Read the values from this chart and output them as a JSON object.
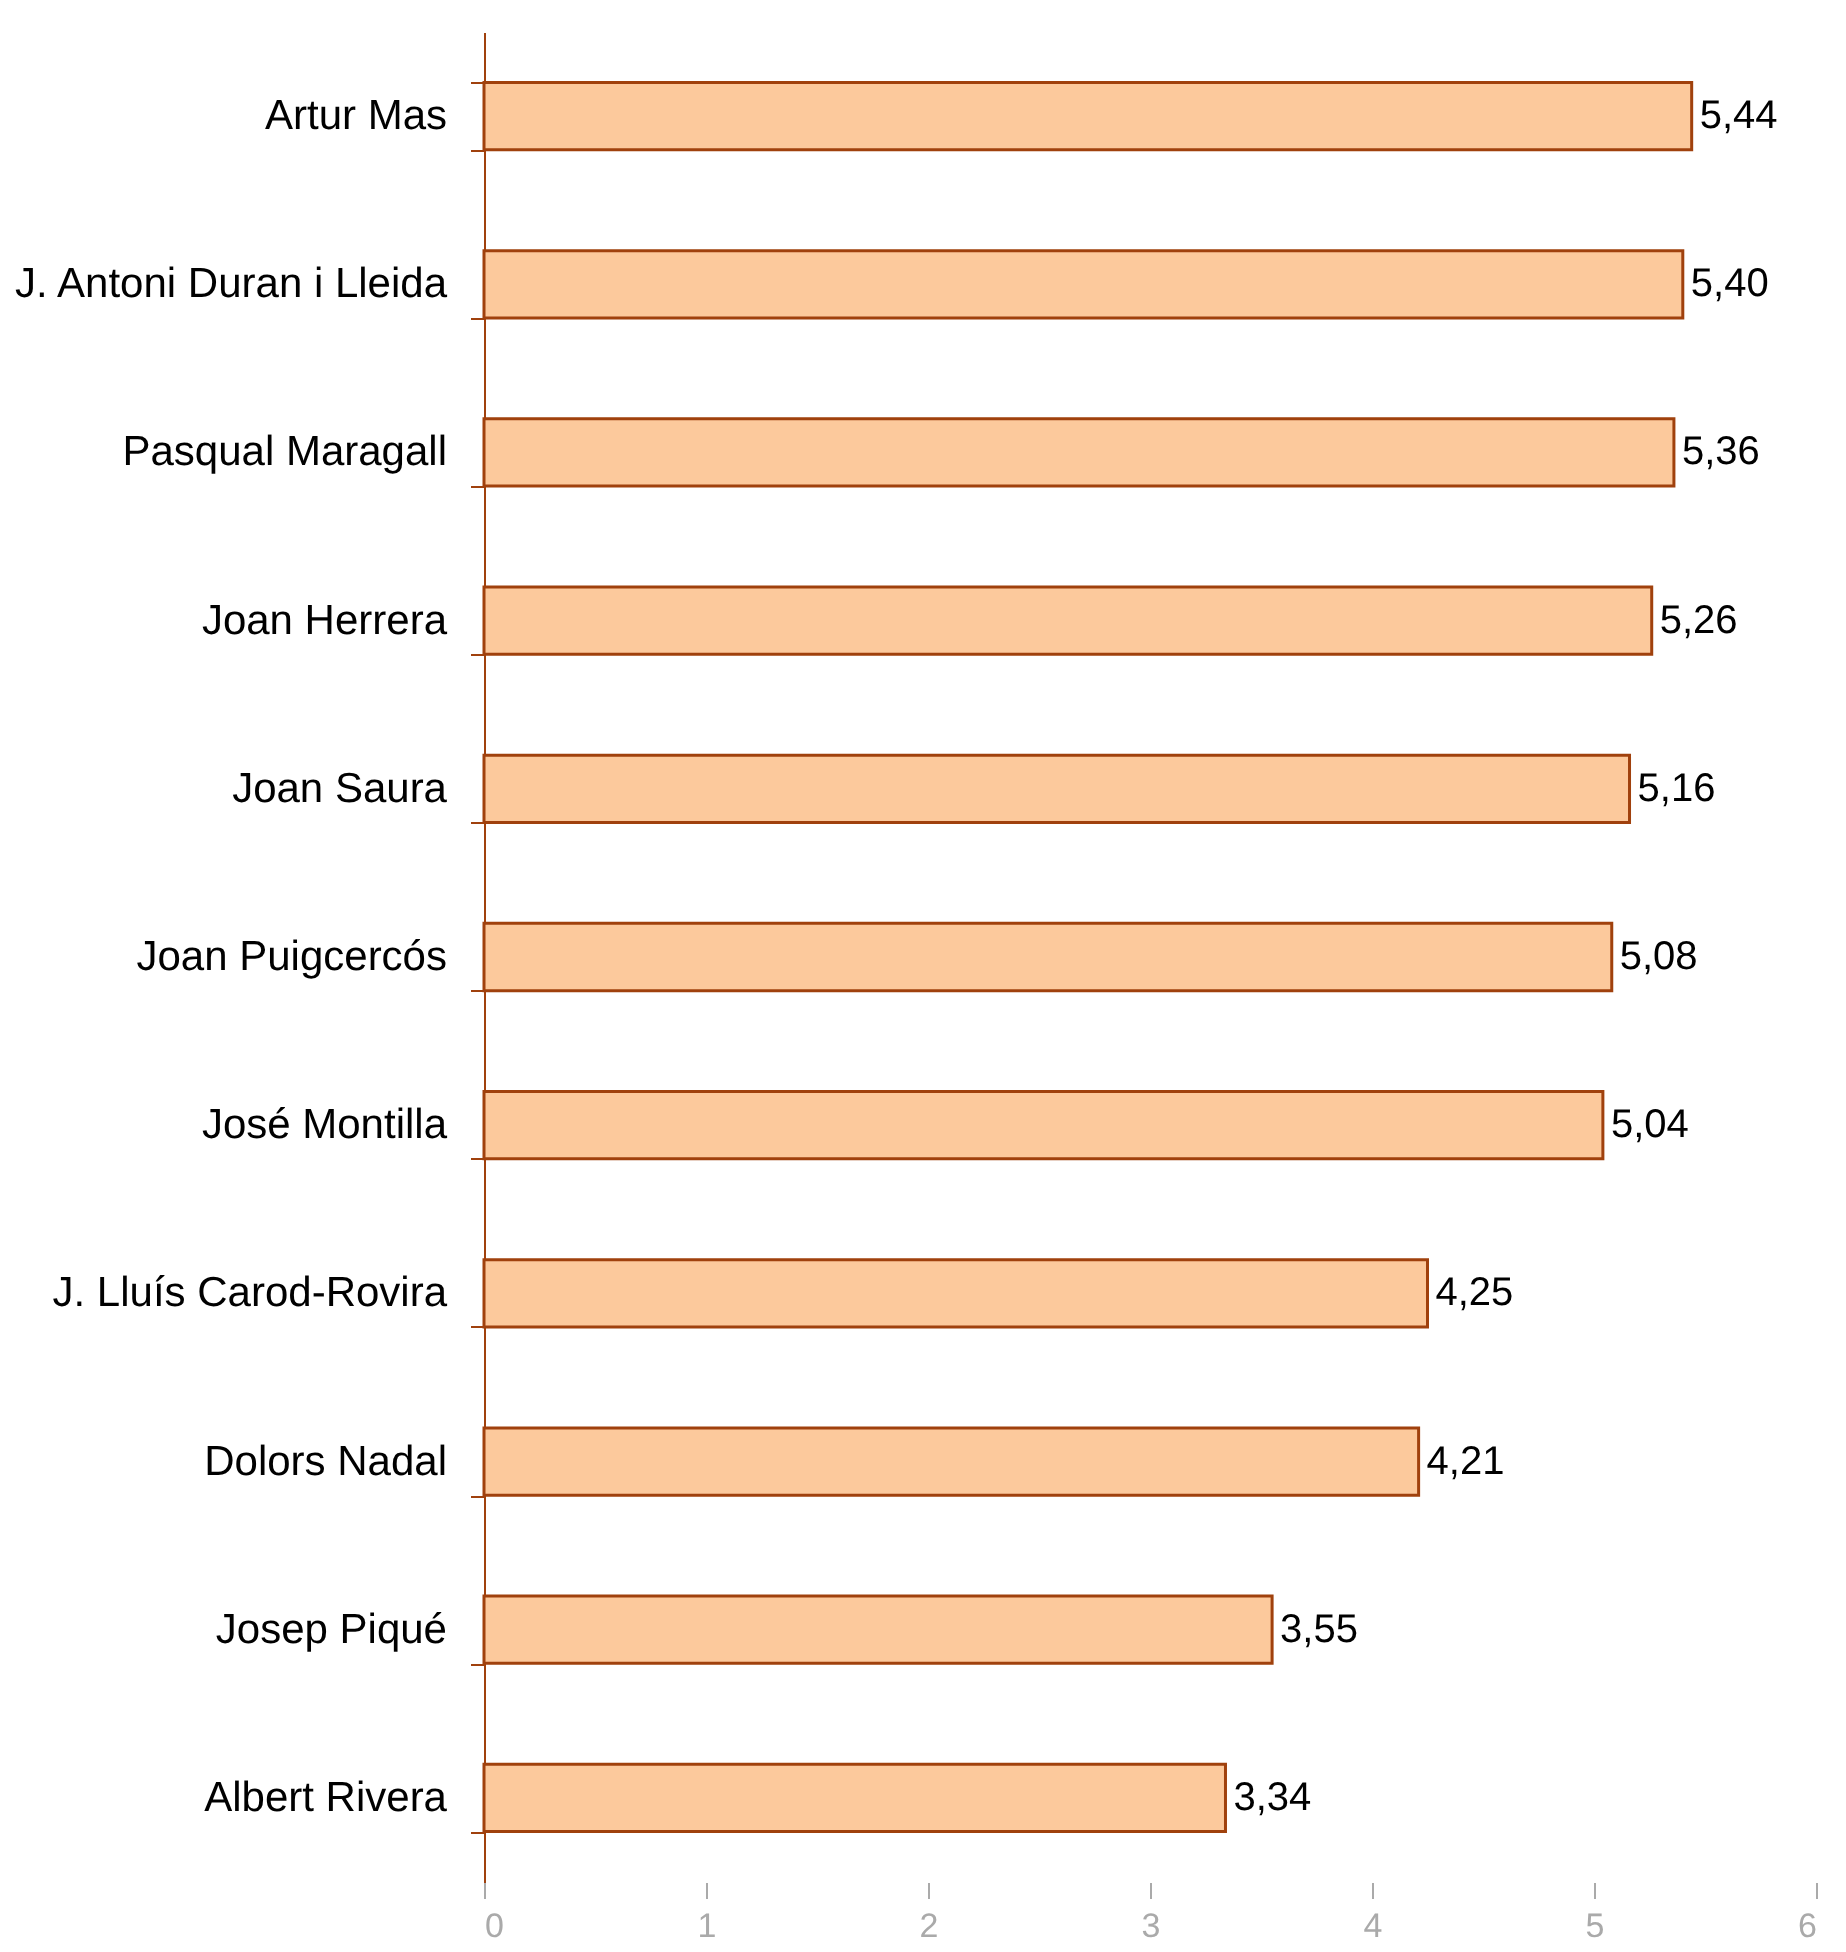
{
  "chart_data": {
    "type": "bar",
    "orientation": "horizontal",
    "categories": [
      "Artur Mas",
      "J. Antoni Duran i Lleida",
      "Pasqual Maragall",
      "Joan Herrera",
      "Joan Saura",
      "Joan Puigcercós",
      "José Montilla",
      "J. Lluís Carod-Rovira",
      "Dolors Nadal",
      "Josep Piqué",
      "Albert Rivera"
    ],
    "values": [
      5.44,
      5.4,
      5.36,
      5.26,
      5.16,
      5.08,
      5.04,
      4.25,
      4.21,
      3.55,
      3.34
    ],
    "value_labels": [
      "5,44",
      "5,40",
      "5,36",
      "5,26",
      "5,16",
      "5,08",
      "5,04",
      "4,25",
      "4,21",
      "3,55",
      "3,34"
    ],
    "color": "#fcc99c",
    "xlim": [
      0,
      6
    ],
    "xticks": [
      0,
      1,
      2,
      3,
      4,
      5,
      6
    ],
    "grid": false
  }
}
